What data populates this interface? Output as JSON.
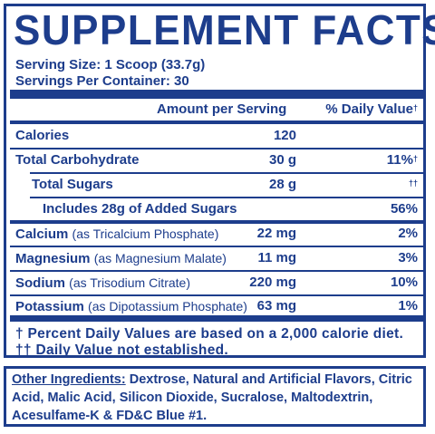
{
  "title": "SUPPLEMENT FACTS",
  "serving_size": "Serving Size: 1 Scoop (33.7g)",
  "servings_per_container": "Servings Per Container: 30",
  "header": {
    "amount": "Amount per Serving",
    "dv": "% Daily Value",
    "dv_mark": "†"
  },
  "rows": [
    {
      "name": "Calories",
      "detail": "",
      "amount": "120",
      "dv": "",
      "dv_mark": ""
    },
    {
      "name": "Total Carbohydrate",
      "detail": "",
      "amount": "30 g",
      "dv": "11%",
      "dv_mark": "†"
    },
    {
      "name": "Total Sugars",
      "detail": "",
      "amount": "28 g",
      "dv": "",
      "dv_mark": "††"
    },
    {
      "name": "Includes 28g of Added Sugars",
      "detail": "",
      "amount": "",
      "dv": "56%",
      "dv_mark": ""
    },
    {
      "name": "Calcium",
      "detail": "(as Tricalcium Phosphate)",
      "amount": "22 mg",
      "dv": "2%",
      "dv_mark": ""
    },
    {
      "name": "Magnesium",
      "detail": "(as Magnesium Malate)",
      "amount": "11 mg",
      "dv": "3%",
      "dv_mark": ""
    },
    {
      "name": "Sodium",
      "detail": "(as Trisodium Citrate)",
      "amount": "220 mg",
      "dv": "10%",
      "dv_mark": ""
    },
    {
      "name": "Potassium",
      "detail": "(as Dipotassium Phosphate)",
      "amount": "63 mg",
      "dv": "1%",
      "dv_mark": ""
    }
  ],
  "footnotes": [
    "† Percent Daily Values are based on a 2,000 calorie diet.",
    "†† Daily Value not established."
  ],
  "ingredients": {
    "label": "Other Ingredients:",
    "text": " Dextrose, Natural and Artificial Flavors, Citric Acid, Malic Acid, Silicon Dioxide, Sucralose, Maltodextrin, Acesulfame-K & FD&C Blue #1."
  },
  "colors": {
    "ink": "#1d3d8c",
    "background": "#ffffff"
  }
}
